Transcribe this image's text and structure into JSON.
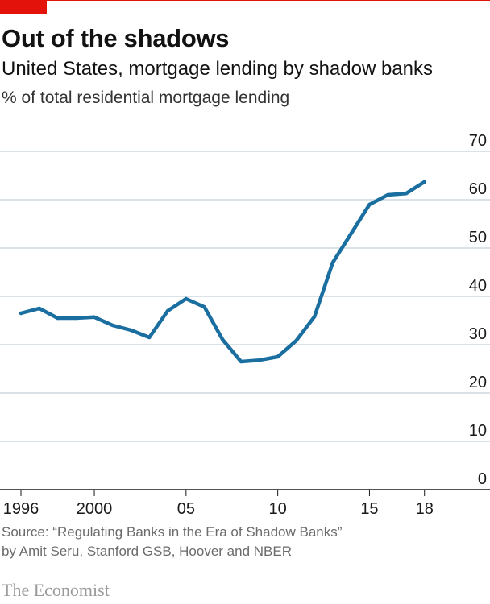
{
  "header": {
    "title": "Out of the shadows",
    "subtitle": "United States, mortgage lending by shadow banks",
    "unit": "% of total residential mortgage lending"
  },
  "chart_data": {
    "type": "line",
    "title": "Out of the shadows",
    "subtitle": "United States, mortgage lending by shadow banks",
    "ylabel": "% of total residential mortgage lending",
    "xlabel": "",
    "xlim": [
      1996,
      2021
    ],
    "ylim": [
      0,
      70
    ],
    "yticks": [
      0,
      10,
      20,
      30,
      40,
      50,
      60,
      70
    ],
    "xticks": [
      {
        "value": 1996,
        "label": "1996"
      },
      {
        "value": 2000,
        "label": "2000"
      },
      {
        "value": 2005,
        "label": "05"
      },
      {
        "value": 2010,
        "label": "10"
      },
      {
        "value": 2015,
        "label": "15"
      },
      {
        "value": 2018,
        "label": "18"
      }
    ],
    "grid": true,
    "legend": "none",
    "color": "#1b6fa0",
    "series": [
      {
        "x": [
          1996,
          1997,
          1998,
          1999,
          2000,
          2001,
          2002,
          2003,
          2004,
          2005,
          2006,
          2007,
          2008,
          2009,
          2010,
          2011,
          2012,
          2013,
          2014,
          2015,
          2016,
          2017,
          2018
        ],
        "values": [
          36.5,
          37.5,
          35.5,
          35.5,
          35.7,
          34,
          33,
          31.5,
          37,
          39.5,
          37.8,
          31,
          26.5,
          26.8,
          27.5,
          30.8,
          35.8,
          47,
          53,
          59,
          61,
          61.3,
          63.7
        ]
      }
    ]
  },
  "footer": {
    "source_line1": "Source: “Regulating Banks in the Era of Shadow Banks”",
    "source_line2": "by Amit Seru, Stanford GSB, Hoover and NBER",
    "brand": "The Economist"
  }
}
